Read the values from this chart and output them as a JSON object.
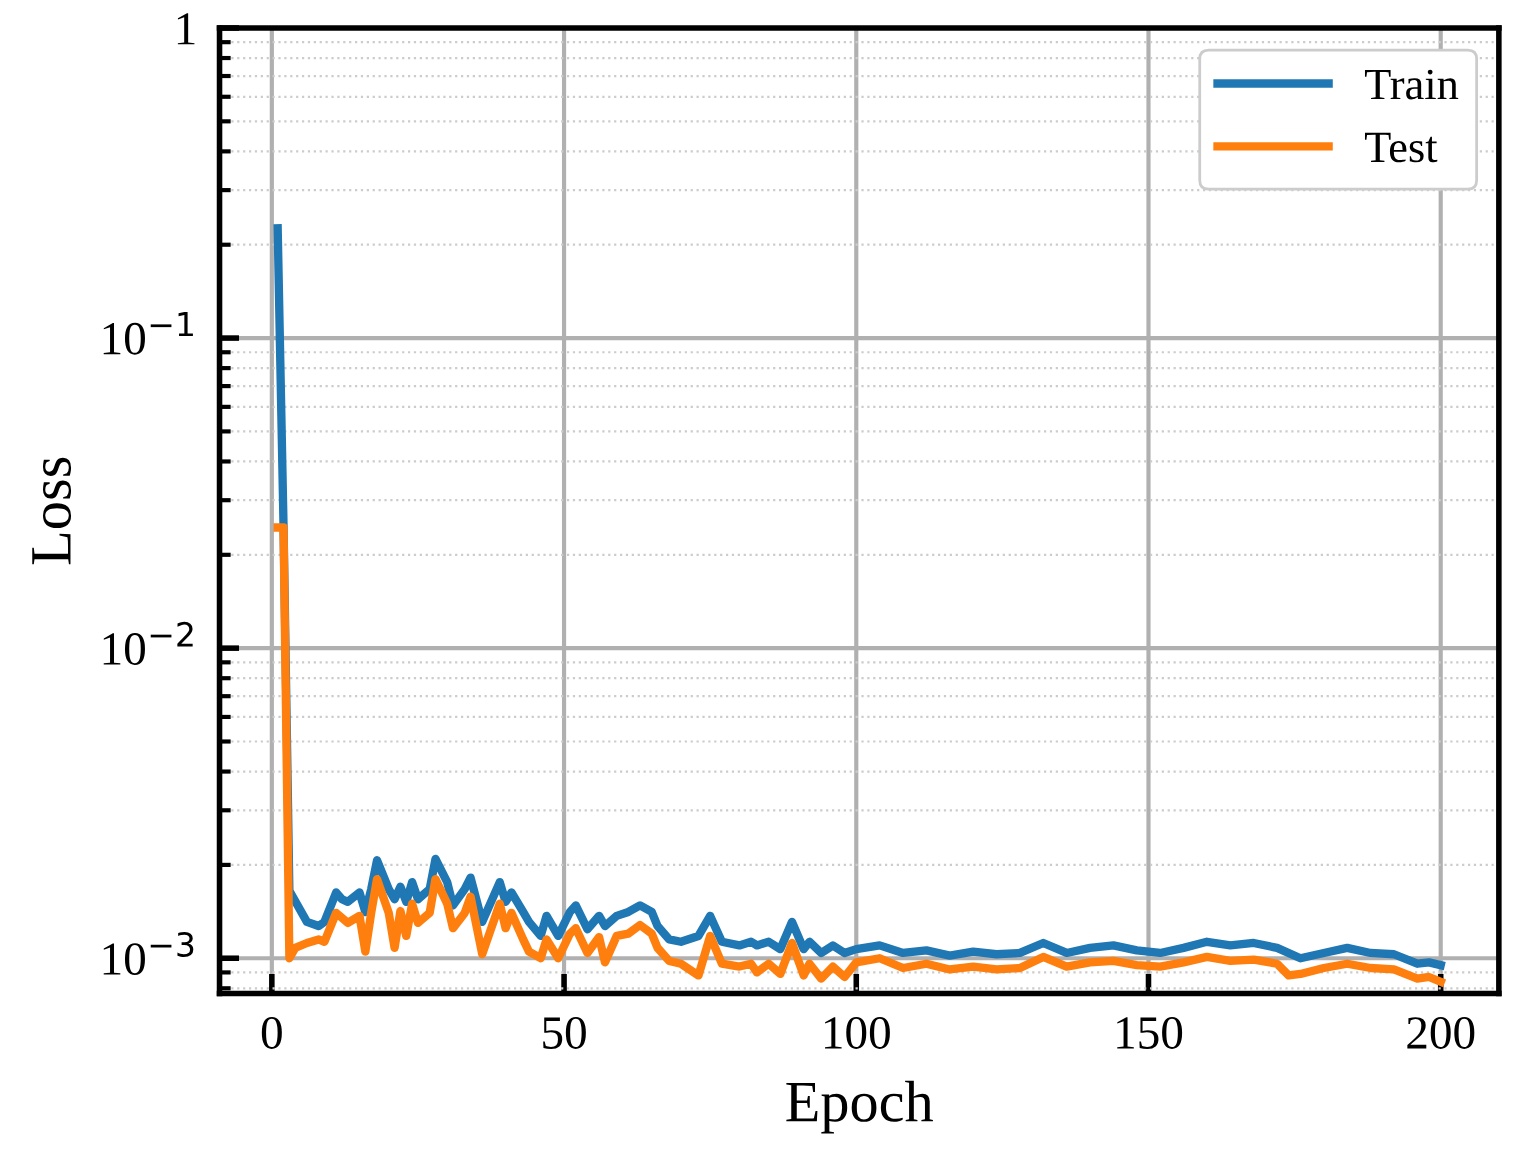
{
  "chart_data": {
    "type": "line",
    "xlabel": "Epoch",
    "ylabel": "Loss",
    "log": "y",
    "grid": true,
    "legend": "top right",
    "marker": "none",
    "line_style": "solid",
    "xlim": [
      -8.95,
      209.95
    ],
    "xticks": [
      0,
      50,
      100,
      150,
      200
    ],
    "ylim": [
      0.00077,
      1
    ],
    "yticks": [
      {
        "value": 0.001,
        "label": "10$^{−3}$"
      },
      {
        "value": 0.01,
        "label": "10$^{−2}$"
      },
      {
        "value": 0.1,
        "label": "10$^{−1}$"
      },
      1
    ],
    "series": [
      {
        "name": "Train",
        "color": "#1f77b4",
        "x": [
          1,
          2,
          3,
          6,
          8,
          9,
          11,
          12,
          13,
          15,
          16,
          17,
          18,
          20,
          21,
          22,
          23,
          24,
          25,
          27,
          28,
          30,
          31,
          33,
          34,
          36,
          39,
          40,
          41,
          43,
          44,
          46,
          47,
          49,
          51,
          52,
          54,
          56,
          57,
          59,
          61,
          63,
          65,
          66,
          68,
          70,
          73,
          75,
          77,
          80,
          82,
          83,
          85,
          87,
          89,
          91,
          92,
          94,
          96,
          98,
          100,
          104,
          108,
          112,
          116,
          120,
          124,
          128,
          132,
          136,
          140,
          144,
          148,
          152,
          156,
          160,
          164,
          168,
          172,
          176,
          180,
          184,
          188,
          192,
          196,
          198,
          200
        ],
        "values": [
          0.226,
          0.0248,
          0.00165,
          0.00131,
          0.00127,
          0.00131,
          0.00163,
          0.00155,
          0.00152,
          0.00163,
          0.00141,
          0.00167,
          0.00207,
          0.00167,
          0.00155,
          0.0017,
          0.00152,
          0.00176,
          0.00155,
          0.00167,
          0.00209,
          0.00176,
          0.00148,
          0.00167,
          0.00182,
          0.00131,
          0.00176,
          0.00152,
          0.00163,
          0.00141,
          0.00131,
          0.00118,
          0.00137,
          0.00118,
          0.00141,
          0.00148,
          0.00124,
          0.00137,
          0.00127,
          0.00137,
          0.00141,
          0.00148,
          0.00141,
          0.00127,
          0.00115,
          0.00113,
          0.00118,
          0.00137,
          0.00113,
          0.0011,
          0.00113,
          0.0011,
          0.00113,
          0.00107,
          0.00131,
          0.00107,
          0.00113,
          0.00104,
          0.0011,
          0.00104,
          0.00107,
          0.0011,
          0.00104,
          0.00106,
          0.00102,
          0.00105,
          0.00103,
          0.00104,
          0.00112,
          0.00104,
          0.00108,
          0.0011,
          0.00106,
          0.00104,
          0.00108,
          0.00113,
          0.0011,
          0.00112,
          0.00108,
          0.001,
          0.00104,
          0.00108,
          0.00104,
          0.00103,
          0.00096,
          0.00097,
          0.00095
        ]
      },
      {
        "name": "Test",
        "color": "#ff7f0e",
        "x": [
          1,
          2,
          3,
          4,
          6,
          8,
          9,
          11,
          12,
          13,
          15,
          16,
          17,
          18,
          20,
          21,
          22,
          23,
          24,
          25,
          27,
          28,
          30,
          31,
          33,
          34,
          36,
          39,
          40,
          41,
          43,
          44,
          46,
          47,
          49,
          51,
          52,
          54,
          56,
          57,
          59,
          61,
          63,
          65,
          66,
          68,
          70,
          73,
          75,
          77,
          80,
          82,
          83,
          85,
          87,
          89,
          91,
          92,
          94,
          96,
          98,
          100,
          104,
          108,
          112,
          116,
          120,
          124,
          128,
          132,
          136,
          140,
          144,
          148,
          152,
          156,
          160,
          164,
          168,
          172,
          174,
          176,
          180,
          184,
          188,
          192,
          196,
          198,
          200
        ],
        "values": [
          0.0245,
          0.0245,
          0.001,
          0.00108,
          0.00112,
          0.00115,
          0.00113,
          0.0014,
          0.00135,
          0.0013,
          0.00137,
          0.00105,
          0.0014,
          0.0018,
          0.0014,
          0.00108,
          0.00142,
          0.00118,
          0.0015,
          0.0013,
          0.0014,
          0.0018,
          0.0015,
          0.00125,
          0.0014,
          0.00158,
          0.00103,
          0.0015,
          0.00125,
          0.0014,
          0.00115,
          0.00105,
          0.001,
          0.00115,
          0.001,
          0.0012,
          0.00125,
          0.00104,
          0.00117,
          0.00097,
          0.00118,
          0.0012,
          0.00128,
          0.0012,
          0.00108,
          0.00098,
          0.00096,
          0.00088,
          0.00118,
          0.00096,
          0.00094,
          0.00096,
          0.0009,
          0.00096,
          0.00089,
          0.00112,
          0.00088,
          0.00096,
          0.00086,
          0.00094,
          0.00087,
          0.00097,
          0.001,
          0.00093,
          0.00096,
          0.00092,
          0.00094,
          0.00092,
          0.00093,
          0.00101,
          0.00094,
          0.00097,
          0.00098,
          0.00095,
          0.00094,
          0.00097,
          0.00101,
          0.00098,
          0.00099,
          0.00096,
          0.00088,
          0.00089,
          0.00093,
          0.00096,
          0.00093,
          0.00092,
          0.00086,
          0.00087,
          0.00084
        ]
      }
    ]
  }
}
